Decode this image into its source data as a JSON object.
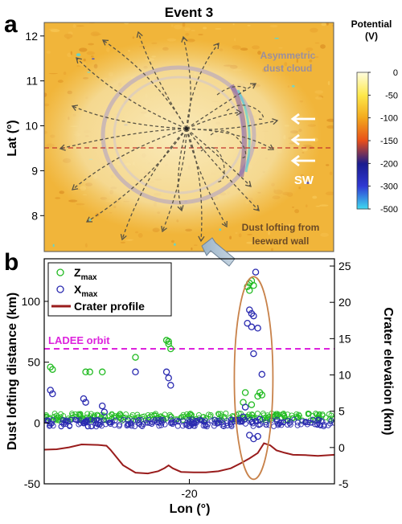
{
  "figure": {
    "panel_a_letter": "a",
    "panel_b_letter": "b"
  },
  "chart_data": [
    {
      "type": "heatmap",
      "panel": "a",
      "title": "Event 3",
      "ylabel": "Lat (°)",
      "ylim": [
        7.2,
        12.3
      ],
      "y_ticks": [
        8,
        9,
        10,
        11,
        12
      ],
      "colorbar": {
        "title": "Potential",
        "unit": "(V)",
        "ticks": [
          0,
          -50,
          -100,
          -150,
          -200,
          -300,
          -500
        ],
        "colors": [
          "#fffde0",
          "#fde84a",
          "#f3a81c",
          "#e84e1a",
          "#1a1c8e",
          "#2f39d4",
          "#3fdcf0"
        ]
      },
      "annotations": {
        "cloud": [
          "Asymmetric",
          "dust cloud"
        ],
        "wall": [
          "Dust lofting from",
          "leeward wall"
        ],
        "wind": "SW"
      },
      "dashed_line_lat": 9.5
    },
    {
      "type": "scatter",
      "panel": "b",
      "xlabel": "Lon (°)",
      "x_ticks": [
        -20
      ],
      "xlim": [
        -23.5,
        -16.5
      ],
      "ylabel": "Dust lofting distance (km)",
      "ylim": [
        -50,
        135
      ],
      "y_ticks": [
        -50,
        0,
        50,
        100
      ],
      "y2label": "Crater elevation (km)",
      "y2lim": [
        -5,
        26
      ],
      "y2_ticks": [
        -5,
        0,
        5,
        10,
        15,
        20,
        25
      ],
      "reference_lines": [
        {
          "label": "LADEE orbit",
          "y": 61,
          "color": "#dd22dd"
        }
      ],
      "legend": {
        "position": "top-left",
        "entries": [
          "Z_max",
          "X_max",
          "Crater profile"
        ]
      },
      "series": [
        {
          "name": "Z_max",
          "symbol": "Z",
          "subscript": "max",
          "color": "#22bb22",
          "marker": "circle",
          "baseline": 5,
          "points": [
            [
              -23.35,
              46
            ],
            [
              -23.3,
              44
            ],
            [
              -22.5,
              42
            ],
            [
              -22.4,
              42
            ],
            [
              -22.1,
              42
            ],
            [
              -21.3,
              54
            ],
            [
              -20.55,
              68
            ],
            [
              -20.5,
              65
            ],
            [
              -20.45,
              61
            ],
            [
              -20.5,
              67
            ],
            [
              -18.6,
              112
            ],
            [
              -18.55,
              115
            ],
            [
              -18.5,
              117
            ],
            [
              -18.45,
              113
            ],
            [
              -18.55,
              109
            ],
            [
              -18.3,
              25
            ],
            [
              -18.25,
              23
            ],
            [
              -18.35,
              22
            ],
            [
              -18.65,
              25
            ],
            [
              -18.7,
              17
            ],
            [
              -18.5,
              15
            ]
          ]
        },
        {
          "name": "X_max",
          "symbol": "X",
          "subscript": "max",
          "color": "#2a2ab0",
          "marker": "circle",
          "baseline": 0,
          "points": [
            [
              -23.35,
              27
            ],
            [
              -23.3,
              24
            ],
            [
              -22.55,
              20
            ],
            [
              -22.5,
              17
            ],
            [
              -22.1,
              14
            ],
            [
              -22.05,
              9
            ],
            [
              -21.3,
              42
            ],
            [
              -20.55,
              42
            ],
            [
              -20.5,
              37
            ],
            [
              -20.45,
              31
            ],
            [
              -18.55,
              93
            ],
            [
              -18.5,
              90
            ],
            [
              -18.45,
              88
            ],
            [
              -18.6,
              82
            ],
            [
              -18.5,
              79
            ],
            [
              -18.35,
              78
            ],
            [
              -18.4,
              124
            ],
            [
              -18.45,
              57
            ],
            [
              -18.25,
              40
            ],
            [
              -18.65,
              13
            ],
            [
              -18.55,
              -10
            ],
            [
              -18.45,
              -13
            ],
            [
              -18.35,
              -11
            ],
            [
              -18.7,
              5
            ],
            [
              -18.3,
              3
            ]
          ]
        },
        {
          "name": "Crater profile",
          "axis": "right",
          "color": "#991c1c",
          "x": [
            -23.5,
            -23.2,
            -22.9,
            -22.6,
            -22.2,
            -22.0,
            -21.9,
            -21.6,
            -21.3,
            -21.0,
            -20.75,
            -20.6,
            -20.5,
            -20.4,
            -20.2,
            -19.9,
            -19.6,
            -19.3,
            -19.0,
            -18.75,
            -18.55,
            -18.35,
            -18.2,
            -18.05,
            -17.9,
            -17.7,
            -17.5,
            -17.2,
            -16.9,
            -16.5
          ],
          "y": [
            -0.3,
            -0.2,
            0.1,
            0.4,
            0.4,
            0.2,
            -0.3,
            -2.5,
            -3.4,
            -3.5,
            -3.3,
            -2.8,
            -2.4,
            -2.8,
            -3.4,
            -3.5,
            -3.4,
            -3.2,
            -2.8,
            -2.2,
            -1.5,
            -0.8,
            0.6,
            0.3,
            -0.4,
            -0.8,
            -1.0,
            -1.1,
            -1.1,
            -1.0
          ]
        }
      ],
      "highlight": {
        "shape": "ellipse",
        "color": "#c8824a",
        "x_center": -18.45,
        "y_center": 37
      }
    }
  ]
}
